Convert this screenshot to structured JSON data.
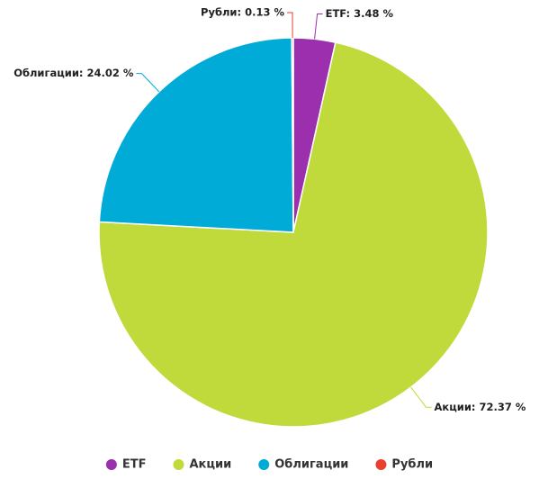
{
  "chart_data": {
    "type": "pie",
    "categories": [
      "ETF",
      "Акции",
      "Облигации",
      "Рубли"
    ],
    "values": [
      3.48,
      72.37,
      24.02,
      0.13
    ],
    "value_labels": [
      "ETF: 3.48 %",
      "Акции: 72.37 %",
      "Облигации: 24.02 %",
      "Рубли: 0.13 %"
    ],
    "colors": [
      "#9b2fae",
      "#c0da3b",
      "#00acd7",
      "#e8412f"
    ],
    "legend": "bottom"
  }
}
